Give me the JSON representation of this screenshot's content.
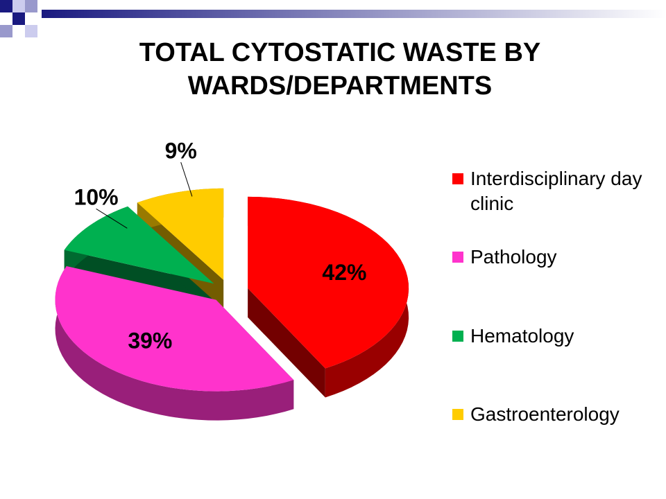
{
  "chart_data": {
    "type": "pie",
    "title": "TOTAL CYTOSTATIC WASTE BY WARDS/DEPARTMENTS",
    "categories": [
      "Interdisciplinary day clinic",
      "Pathology",
      "Hematology",
      "Gastroenterology"
    ],
    "values": [
      42,
      39,
      10,
      9
    ],
    "value_labels": [
      "42%",
      "39%",
      "10%",
      "9%"
    ],
    "colors": [
      "#ff0000",
      "#ff33cc",
      "#00b050",
      "#ffcc00"
    ],
    "legend": "right"
  }
}
